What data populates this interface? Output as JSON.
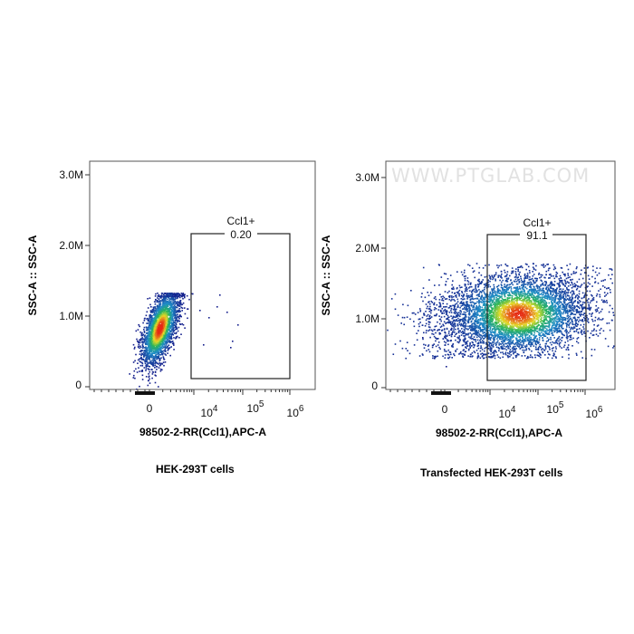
{
  "chart_data": [
    {
      "type": "scatter",
      "title": "",
      "caption": "HEK-293T cells",
      "xlabel": "98502-2-RR(Ccl1),APC-A",
      "ylabel": "SSC-A :: SSC-A",
      "x_scale": "biexponential",
      "x_tick_labels": [
        "0",
        "10^4",
        "10^5",
        "10^6"
      ],
      "y_tick_labels": [
        "0",
        "1.0M",
        "2.0M",
        "3.0M"
      ],
      "ylim": [
        0,
        3000000
      ],
      "gate": {
        "name": "Ccl1+",
        "percent": "0.20"
      },
      "population": {
        "x_center": "~0 (negative)",
        "y_center": 800000
      }
    },
    {
      "type": "scatter",
      "title": "",
      "caption": "Transfected HEK-293T cells",
      "xlabel": "98502-2-RR(Ccl1),APC-A",
      "ylabel": "SSC-A :: SSC-A",
      "x_scale": "biexponential",
      "x_tick_labels": [
        "0",
        "10^4",
        "10^5",
        "10^6"
      ],
      "y_tick_labels": [
        "0",
        "1.0M",
        "2.0M",
        "3.0M"
      ],
      "ylim": [
        0,
        3000000
      ],
      "gate": {
        "name": "Ccl1+",
        "percent": "91.1"
      },
      "population": {
        "x_center": 20000,
        "y_center": 1000000
      },
      "watermark": "WWW.PTGLAB.COM"
    }
  ]
}
